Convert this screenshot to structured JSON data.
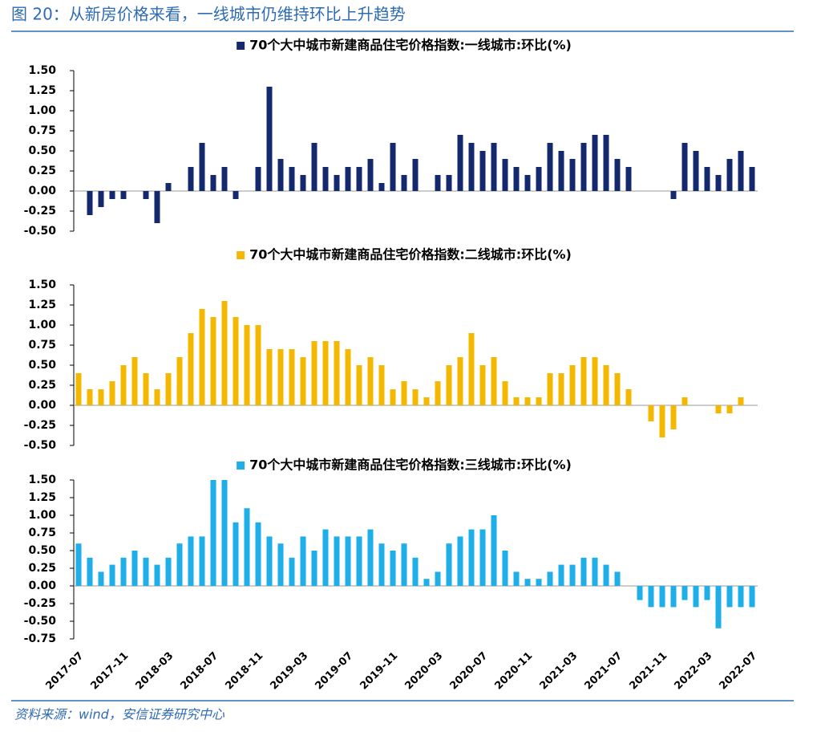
{
  "header": {
    "title": "图 20：从新房价格来看，一线城市仍维持环比上升趋势"
  },
  "footer": {
    "source": "资料来源：wind，安信证券研究中心"
  },
  "chart_data": [
    {
      "type": "bar",
      "series": [
        {
          "name": "70个大中城市新建商品住宅价格指数:一线城市:环比(%)",
          "color": "#14286e",
          "values": [
            0,
            -0.3,
            -0.2,
            -0.1,
            -0.1,
            0,
            -0.1,
            -0.4,
            0.1,
            0,
            0.3,
            0.6,
            0.2,
            0.3,
            -0.1,
            0,
            0.3,
            1.3,
            0.4,
            0.3,
            0.2,
            0.6,
            0.3,
            0.2,
            0.3,
            0.3,
            0.4,
            0.1,
            0.6,
            0.2,
            0.4,
            0,
            0.2,
            0.2,
            0.7,
            0.6,
            0.5,
            0.6,
            0.4,
            0.3,
            0.2,
            0.3,
            0.6,
            0.5,
            0.4,
            0.6,
            0.7,
            0.7,
            0.4,
            0.3,
            0,
            0,
            0,
            -0.1,
            0.6,
            0.5,
            0.3,
            0.2,
            0.4,
            0.5,
            0.3
          ]
        }
      ],
      "ylim": [
        -0.5,
        1.5
      ],
      "yticks": [
        {
          "value": 1.5,
          "label": "1.50"
        },
        1.25,
        {
          "value": 1.0,
          "label": "1.00"
        },
        0.75,
        {
          "value": 0.5,
          "label": "0.50"
        },
        0.25,
        {
          "value": 0,
          "label": "0.00"
        },
        -0.25,
        {
          "value": -0.5,
          "label": "-0.50"
        }
      ]
    },
    {
      "type": "bar",
      "series": [
        {
          "name": "70个大中城市新建商品住宅价格指数:二线城市:环比(%)",
          "color": "#f5b800",
          "values": [
            0.4,
            0.2,
            0.2,
            0.3,
            0.5,
            0.6,
            0.4,
            0.2,
            0.4,
            0.6,
            0.9,
            1.2,
            1.1,
            1.3,
            1.1,
            1.0,
            1.0,
            0.7,
            0.7,
            0.7,
            0.6,
            0.8,
            0.8,
            0.8,
            0.7,
            0.5,
            0.6,
            0.5,
            0.2,
            0.3,
            0.2,
            0.1,
            0.3,
            0.5,
            0.6,
            0.9,
            0.5,
            0.6,
            0.3,
            0.1,
            0.1,
            0.1,
            0.4,
            0.4,
            0.5,
            0.6,
            0.6,
            0.5,
            0.4,
            0.2,
            0,
            -0.2,
            -0.4,
            -0.3,
            0.1,
            0,
            0,
            -0.1,
            -0.1,
            0.1,
            0
          ]
        }
      ],
      "ylim": [
        -0.5,
        1.5
      ],
      "yticks": [
        {
          "value": 1.5,
          "label": "1.50"
        },
        1.25,
        {
          "value": 1.0,
          "label": "1.00"
        },
        0.75,
        {
          "value": 0.5,
          "label": "0.50"
        },
        0.25,
        {
          "value": 0,
          "label": "0.00"
        },
        -0.25,
        {
          "value": -0.5,
          "label": "-0.50"
        }
      ]
    },
    {
      "type": "bar",
      "categories": [
        "2017-07",
        null,
        null,
        null,
        "2017-11",
        null,
        null,
        null,
        "2018-03",
        null,
        null,
        null,
        "2018-07",
        null,
        null,
        null,
        "2018-11",
        null,
        null,
        null,
        "2019-03",
        null,
        null,
        null,
        "2019-07",
        null,
        null,
        null,
        "2019-11",
        null,
        null,
        null,
        "2020-03",
        null,
        null,
        null,
        "2020-07",
        null,
        null,
        null,
        "2020-11",
        null,
        null,
        null,
        "2021-03",
        null,
        null,
        null,
        "2021-07",
        null,
        null,
        null,
        "2021-11",
        null,
        null,
        null,
        "2022-03",
        null,
        null,
        null,
        "2022-07"
      ],
      "series": [
        {
          "name": "70个大中城市新建商品住宅价格指数:三线城市:环比(%)",
          "color": "#1eaee8",
          "values": [
            0.6,
            0.4,
            0.2,
            0.3,
            0.4,
            0.5,
            0.4,
            0.3,
            0.4,
            0.6,
            0.7,
            0.7,
            1.5,
            1.5,
            0.9,
            1.1,
            0.9,
            0.7,
            0.6,
            0.4,
            0.7,
            0.5,
            0.8,
            0.7,
            0.7,
            0.7,
            0.8,
            0.6,
            0.5,
            0.6,
            0.4,
            0.1,
            0.2,
            0.6,
            0.7,
            0.8,
            0.8,
            1.0,
            0.5,
            0.2,
            0.1,
            0.1,
            0.2,
            0.3,
            0.3,
            0.4,
            0.4,
            0.3,
            0.2,
            0,
            -0.2,
            -0.3,
            -0.3,
            -0.3,
            -0.2,
            -0.3,
            -0.2,
            -0.6,
            -0.3,
            -0.3,
            -0.3
          ]
        }
      ],
      "ylim": [
        -0.75,
        1.5
      ],
      "yticks": [
        {
          "value": 1.5,
          "label": "1.50"
        },
        1.25,
        {
          "value": 1.0,
          "label": "1.00"
        },
        0.75,
        {
          "value": 0.5,
          "label": "0.50"
        },
        0.25,
        {
          "value": 0,
          "label": "0.00"
        },
        -0.25,
        {
          "value": -0.5,
          "label": "-0.50"
        },
        -0.75
      ]
    }
  ]
}
